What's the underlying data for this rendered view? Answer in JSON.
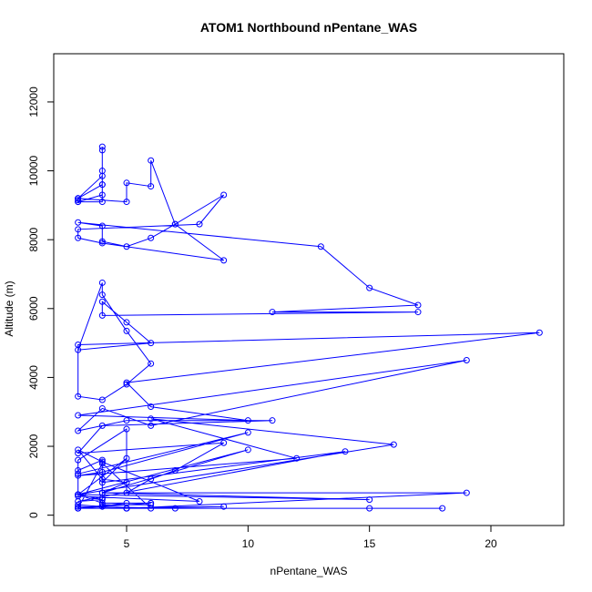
{
  "chart_data": {
    "type": "line",
    "title": "ATOM1 Northbound nPentane_WAS",
    "xlabel": "nPentane_WAS",
    "ylabel": "Altitude (m)",
    "xlim": [
      2.0,
      23.0
    ],
    "ylim": [
      -300,
      13400
    ],
    "x_ticks": [
      5,
      10,
      15,
      20
    ],
    "y_ticks": [
      0,
      2000,
      4000,
      6000,
      8000,
      10000,
      12000
    ],
    "grid": false,
    "legend": "none",
    "series_color": "#0000ff",
    "marker": "open-circle",
    "series": [
      {
        "x": [
          3,
          3,
          3,
          4,
          4,
          4,
          4,
          3,
          3,
          4,
          4,
          4,
          4,
          3,
          5,
          5,
          6,
          6,
          7,
          9,
          8,
          3,
          3,
          4,
          9,
          7,
          6,
          5,
          4,
          4,
          3,
          13,
          15,
          17,
          11,
          17,
          4,
          4,
          5,
          6,
          3,
          4,
          4,
          5,
          6,
          5,
          4,
          3,
          3,
          22,
          5,
          6,
          10,
          3,
          19,
          6,
          4,
          3,
          5,
          11,
          4,
          3,
          9,
          7,
          6,
          5,
          5,
          3,
          3,
          10,
          4,
          3,
          12,
          6,
          16,
          3,
          4,
          3,
          14,
          4,
          5,
          3,
          15,
          4,
          19,
          5,
          15,
          18,
          6,
          4,
          3,
          6,
          5,
          3,
          9,
          5,
          3,
          5,
          7,
          3,
          3,
          4,
          6,
          4,
          3,
          10,
          4,
          5,
          4,
          3,
          4,
          8,
          3,
          3,
          4,
          4,
          4,
          6
        ],
        "y": [
          9200,
          9150,
          9100,
          9100,
          10700,
          10600,
          9600,
          9200,
          9100,
          9300,
          9600,
          10000,
          9850,
          9200,
          9100,
          9650,
          9550,
          10300,
          8450,
          9300,
          8450,
          8300,
          8050,
          7900,
          7400,
          8450,
          8050,
          7800,
          7950,
          8400,
          8500,
          7800,
          6600,
          6100,
          5900,
          5900,
          5800,
          6200,
          5600,
          5000,
          4800,
          6750,
          6400,
          5350,
          4400,
          3800,
          3350,
          3450,
          4950,
          5300,
          3850,
          3150,
          2750,
          2900,
          4500,
          2600,
          3100,
          2450,
          2750,
          2750,
          2600,
          1800,
          2100,
          1300,
          1050,
          650,
          2500,
          1600,
          1200,
          2400,
          1250,
          1150,
          1650,
          2800,
          2050,
          600,
          450,
          400,
          1850,
          950,
          1650,
          600,
          450,
          650,
          650,
          200,
          200,
          200,
          200,
          1500,
          200,
          350,
          350,
          200,
          250,
          200,
          200,
          200,
          200,
          250,
          300,
          250,
          350,
          350,
          600,
          1900,
          650,
          950,
          1050,
          1900,
          1550,
          400,
          550,
          1300,
          1600,
          500,
          300,
          300
        ],
        "vertices": [
          [
            3,
            9200
          ],
          [
            3,
            9150
          ],
          [
            3,
            9100
          ],
          [
            4,
            9100
          ],
          [
            4,
            10700
          ],
          [
            4,
            10600
          ],
          [
            4,
            9600
          ],
          [
            3,
            9200
          ],
          [
            3,
            9100
          ],
          [
            4,
            9300
          ],
          [
            4,
            9600
          ],
          [
            4,
            10000
          ],
          [
            4,
            9850
          ],
          [
            3,
            9200
          ],
          [
            5,
            9100
          ],
          [
            5,
            9650
          ],
          [
            6,
            9550
          ],
          [
            6,
            10300
          ],
          [
            7,
            8450
          ],
          [
            9,
            9300
          ],
          [
            8,
            8450
          ],
          [
            3,
            8300
          ],
          [
            3,
            8050
          ],
          [
            4,
            7900
          ],
          [
            9,
            7400
          ],
          [
            7,
            8450
          ],
          [
            6,
            8050
          ],
          [
            5,
            7800
          ],
          [
            4,
            7950
          ],
          [
            4,
            8400
          ],
          [
            3,
            8500
          ],
          [
            13,
            7800
          ],
          [
            15,
            6600
          ],
          [
            17,
            6100
          ],
          [
            11,
            5900
          ],
          [
            17,
            5900
          ],
          [
            4,
            5800
          ],
          [
            4,
            6200
          ],
          [
            5,
            5600
          ],
          [
            6,
            5000
          ],
          [
            3,
            4800
          ],
          [
            4,
            6750
          ],
          [
            4,
            6400
          ],
          [
            5,
            5350
          ],
          [
            6,
            4400
          ],
          [
            5,
            3800
          ],
          [
            4,
            3350
          ],
          [
            3,
            3450
          ],
          [
            3,
            4950
          ],
          [
            22,
            5300
          ],
          [
            5,
            3850
          ],
          [
            6,
            3150
          ],
          [
            10,
            2750
          ],
          [
            3,
            2900
          ],
          [
            19,
            4500
          ],
          [
            6,
            2600
          ],
          [
            4,
            3100
          ],
          [
            3,
            2450
          ],
          [
            5,
            2750
          ],
          [
            11,
            2750
          ],
          [
            4,
            2600
          ],
          [
            3,
            1800
          ],
          [
            9,
            2100
          ],
          [
            7,
            1300
          ],
          [
            6,
            1050
          ],
          [
            5,
            650
          ],
          [
            5,
            2500
          ],
          [
            3,
            1600
          ],
          [
            3,
            1200
          ],
          [
            10,
            2400
          ],
          [
            4,
            1250
          ],
          [
            3,
            1150
          ],
          [
            12,
            1650
          ],
          [
            6,
            2800
          ],
          [
            16,
            2050
          ],
          [
            3,
            600
          ],
          [
            4,
            450
          ],
          [
            3,
            400
          ],
          [
            14,
            1850
          ],
          [
            4,
            950
          ],
          [
            5,
            1650
          ],
          [
            3,
            600
          ],
          [
            15,
            450
          ],
          [
            4,
            650
          ],
          [
            19,
            650
          ],
          [
            5,
            200
          ],
          [
            15,
            200
          ],
          [
            18,
            200
          ],
          [
            6,
            200
          ],
          [
            4,
            1500
          ],
          [
            3,
            200
          ],
          [
            6,
            350
          ],
          [
            5,
            350
          ],
          [
            3,
            200
          ],
          [
            9,
            250
          ],
          [
            5,
            200
          ],
          [
            3,
            200
          ],
          [
            5,
            200
          ],
          [
            7,
            200
          ],
          [
            3,
            250
          ],
          [
            3,
            300
          ],
          [
            4,
            250
          ],
          [
            6,
            350
          ],
          [
            4,
            350
          ],
          [
            3,
            600
          ],
          [
            10,
            1900
          ],
          [
            4,
            650
          ],
          [
            5,
            950
          ],
          [
            4,
            1050
          ],
          [
            3,
            1900
          ],
          [
            4,
            1550
          ],
          [
            8,
            400
          ],
          [
            3,
            550
          ],
          [
            3,
            1300
          ],
          [
            4,
            1600
          ],
          [
            4,
            500
          ],
          [
            4,
            300
          ],
          [
            6,
            300
          ]
        ]
      }
    ]
  }
}
